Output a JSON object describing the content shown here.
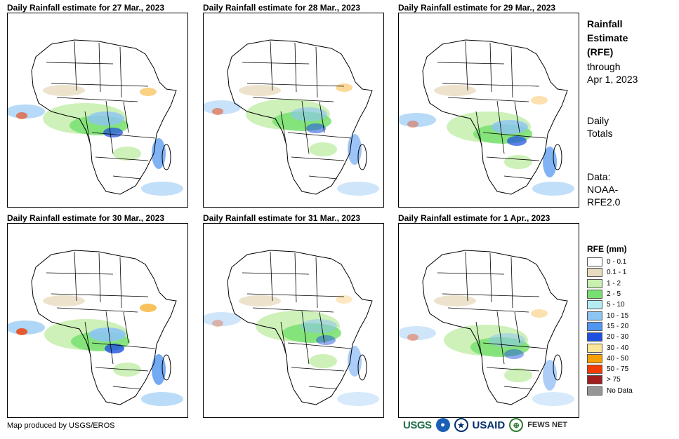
{
  "panels": [
    {
      "title": "Daily Rainfall estimate for 27 Mar., 2023",
      "intensity": 0.9,
      "hot": 0.6
    },
    {
      "title": "Daily Rainfall estimate for 28 Mar., 2023",
      "intensity": 0.7,
      "hot": 0.5
    },
    {
      "title": "Daily Rainfall estimate for 29 Mar., 2023",
      "intensity": 0.9,
      "hot": 0.4
    },
    {
      "title": "Daily Rainfall estimate for 30 Mar., 2023",
      "intensity": 1.0,
      "hot": 0.8
    },
    {
      "title": "Daily Rainfall estimate for 31 Mar., 2023",
      "intensity": 0.6,
      "hot": 0.3
    },
    {
      "title": "Daily Rainfall estimate for 1 Apr., 2023",
      "intensity": 0.6,
      "hot": 0.4
    }
  ],
  "side": {
    "title_lines": [
      "Rainfall",
      "Estimate",
      "(RFE)"
    ],
    "through_lines": [
      "through",
      "Apr 1, 2023"
    ],
    "totals_lines": [
      "Daily",
      "Totals"
    ],
    "data_lines": [
      "Data:",
      "NOAA-",
      "RFE2.0"
    ]
  },
  "legend": {
    "title": "RFE (mm)",
    "items": [
      {
        "label": "0 - 0.1",
        "color": "#ffffff"
      },
      {
        "label": "0.1 - 1",
        "color": "#e8dcc0"
      },
      {
        "label": "1 - 2",
        "color": "#c8f0b0"
      },
      {
        "label": "2 - 5",
        "color": "#78e070"
      },
      {
        "label": "5 - 10",
        "color": "#b4ecf4"
      },
      {
        "label": "10 - 15",
        "color": "#8cc4f4"
      },
      {
        "label": "15 - 20",
        "color": "#5096f0"
      },
      {
        "label": "20 - 30",
        "color": "#1e50e0"
      },
      {
        "label": "30 - 40",
        "color": "#fae696"
      },
      {
        "label": "40 - 50",
        "color": "#f5a000"
      },
      {
        "label": "50 - 75",
        "color": "#f03c00"
      },
      {
        "label": "> 75",
        "color": "#a01e1e"
      },
      {
        "label": "No Data",
        "color": "#969696"
      }
    ]
  },
  "credit": "Map produced by USGS/EROS",
  "logos": {
    "usgs": "USGS",
    "usaid": "USAID",
    "fews": "FEWS NET"
  }
}
